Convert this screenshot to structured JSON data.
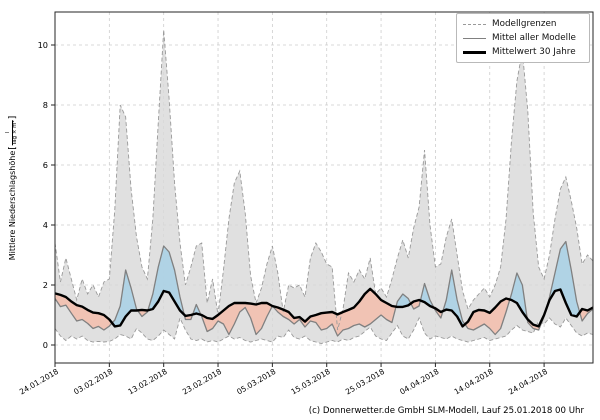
{
  "meta": {
    "footer": "(c) Donnerwetter.de GmbH SLM-Modell, Lauf 25.01.2018 00 Uhr"
  },
  "chart_data": {
    "type": "area",
    "title": "",
    "xlabel": "",
    "ylabel": {
      "text": "Mittlere Niederschlagshöhe",
      "bracket_open": "[",
      "unit_numerator": "l",
      "unit_denominator": "Tag × m²",
      "bracket_close": "]"
    },
    "x_tick_labels": [
      "24.01.2018",
      "03.02.2018",
      "13.02.2018",
      "23.02.2018",
      "05.03.2018",
      "15.03.2018",
      "25.03.2018",
      "04.04.2018",
      "14.04.2018",
      "24.04.2018"
    ],
    "x_tick_days": [
      0,
      10,
      20,
      30,
      40,
      50,
      60,
      70,
      80,
      90
    ],
    "y_ticks": [
      0,
      2,
      4,
      6,
      8,
      10
    ],
    "ylim": [
      -0.6,
      11.1
    ],
    "grid": true,
    "legend_position": "upper right",
    "legend": [
      {
        "label": "Modellgrenzen",
        "style": "dashed-gray"
      },
      {
        "label": "Mittel aller Modelle",
        "style": "solid-gray"
      },
      {
        "label": "Mittelwert 30 Jahre",
        "style": "solid-black-thick"
      }
    ],
    "series": [
      {
        "name": "Modellgrenzen Maximum",
        "values": [
          3.4,
          2.1,
          2.9,
          2.2,
          1.5,
          2.2,
          1.7,
          2.0,
          1.6,
          2.1,
          2.2,
          4.5,
          8.0,
          7.6,
          5.2,
          3.6,
          2.6,
          2.2,
          4.2,
          7.4,
          10.5,
          8.2,
          5.4,
          3.4,
          2.0,
          2.6,
          3.3,
          3.4,
          1.4,
          2.2,
          1.0,
          2.5,
          4.2,
          5.4,
          5.8,
          4.4,
          2.3,
          1.4,
          1.9,
          2.7,
          3.3,
          2.4,
          1.1,
          2.0,
          1.9,
          2.0,
          1.6,
          2.9,
          3.4,
          3.1,
          2.7,
          2.6,
          0.5,
          1.2,
          2.4,
          2.1,
          2.5,
          2.2,
          2.9,
          1.7,
          1.9,
          1.6,
          2.2,
          2.9,
          3.5,
          2.9,
          3.9,
          4.6,
          6.5,
          4.0,
          2.6,
          2.7,
          3.6,
          4.2,
          3.0,
          1.8,
          1.2,
          1.5,
          1.7,
          1.9,
          1.6,
          2.0,
          2.6,
          4.2,
          6.8,
          8.8,
          9.8,
          7.8,
          4.4,
          2.6,
          2.2,
          3.0,
          4.2,
          5.2,
          5.6,
          4.8,
          3.9,
          2.7,
          3.0,
          2.8
        ]
      },
      {
        "name": "Modellgrenzen Minimum",
        "values": [
          0.55,
          0.3,
          0.15,
          0.3,
          0.2,
          0.3,
          0.15,
          0.1,
          0.12,
          0.1,
          0.12,
          0.2,
          0.35,
          0.3,
          0.2,
          0.55,
          0.4,
          0.2,
          0.15,
          0.3,
          0.5,
          0.35,
          0.2,
          0.9,
          0.5,
          0.2,
          0.15,
          0.2,
          0.1,
          0.15,
          0.1,
          0.2,
          0.3,
          0.2,
          0.25,
          0.15,
          0.1,
          0.15,
          0.2,
          0.15,
          0.1,
          0.3,
          0.25,
          0.5,
          0.25,
          0.2,
          0.3,
          0.15,
          0.1,
          0.05,
          0.1,
          0.15,
          0.1,
          0.2,
          0.15,
          0.25,
          0.3,
          0.45,
          0.6,
          0.3,
          0.2,
          0.15,
          0.4,
          0.65,
          0.3,
          0.2,
          0.5,
          0.9,
          0.4,
          0.2,
          0.3,
          0.25,
          0.2,
          0.3,
          0.2,
          0.15,
          0.1,
          0.15,
          0.2,
          0.25,
          0.15,
          0.2,
          0.25,
          0.3,
          0.5,
          0.65,
          0.5,
          0.45,
          0.4,
          0.8,
          0.7,
          0.9,
          0.7,
          0.6,
          0.9,
          0.65,
          0.4,
          0.3,
          0.4,
          0.35
        ]
      },
      {
        "name": "Mittel aller Modelle",
        "values": [
          1.55,
          1.28,
          1.33,
          1.06,
          0.8,
          0.85,
          0.72,
          0.55,
          0.62,
          0.5,
          0.63,
          0.83,
          1.3,
          2.5,
          1.9,
          1.2,
          0.95,
          1.1,
          1.7,
          2.6,
          3.3,
          3.1,
          2.5,
          1.6,
          0.85,
          0.85,
          1.35,
          0.95,
          0.45,
          0.55,
          0.8,
          0.7,
          0.35,
          0.7,
          1.1,
          1.25,
          0.9,
          0.35,
          0.55,
          0.95,
          1.3,
          1.1,
          0.95,
          0.85,
          0.7,
          0.85,
          0.6,
          0.8,
          0.75,
          0.5,
          0.55,
          0.7,
          0.3,
          0.5,
          0.55,
          0.65,
          0.7,
          0.6,
          0.7,
          0.85,
          1.0,
          0.85,
          0.75,
          1.45,
          1.7,
          1.55,
          1.2,
          1.3,
          2.05,
          1.5,
          1.15,
          0.9,
          1.5,
          2.5,
          1.5,
          0.8,
          0.55,
          0.5,
          0.6,
          0.7,
          0.55,
          0.35,
          0.55,
          1.1,
          1.7,
          2.4,
          2.0,
          0.75,
          0.55,
          0.5,
          0.95,
          1.6,
          2.4,
          3.2,
          3.45,
          2.5,
          1.45,
          0.8,
          1.05,
          1.2
        ]
      },
      {
        "name": "Mittelwert 30 Jahre",
        "values": [
          1.72,
          1.67,
          1.6,
          1.45,
          1.33,
          1.28,
          1.17,
          1.08,
          1.06,
          1.0,
          0.85,
          0.62,
          0.65,
          0.95,
          1.15,
          1.15,
          1.17,
          1.15,
          1.2,
          1.45,
          1.8,
          1.75,
          1.45,
          1.15,
          0.97,
          1.0,
          1.05,
          1.0,
          0.9,
          0.87,
          1.0,
          1.15,
          1.3,
          1.4,
          1.4,
          1.4,
          1.38,
          1.35,
          1.4,
          1.4,
          1.3,
          1.25,
          1.18,
          1.1,
          0.9,
          0.93,
          0.78,
          0.95,
          1.0,
          1.06,
          1.08,
          1.1,
          1.02,
          1.1,
          1.17,
          1.25,
          1.45,
          1.7,
          1.87,
          1.7,
          1.5,
          1.4,
          1.3,
          1.27,
          1.27,
          1.32,
          1.45,
          1.5,
          1.43,
          1.3,
          1.22,
          1.1,
          1.18,
          1.15,
          0.95,
          0.62,
          0.78,
          1.1,
          1.17,
          1.15,
          1.07,
          1.25,
          1.45,
          1.55,
          1.5,
          1.4,
          1.1,
          0.85,
          0.68,
          0.62,
          1.0,
          1.5,
          1.8,
          1.85,
          1.4,
          1.0,
          0.95,
          1.2,
          1.15,
          1.25
        ]
      }
    ],
    "colors": {
      "band": "#d8d8d8",
      "bound_line": "#999999",
      "mean_line": "#808080",
      "climate_line": "#000000",
      "above_fill": "#abd1e5",
      "below_fill": "#f2c0b0",
      "grid": "#cdcdcd",
      "frame": "#262626"
    }
  }
}
